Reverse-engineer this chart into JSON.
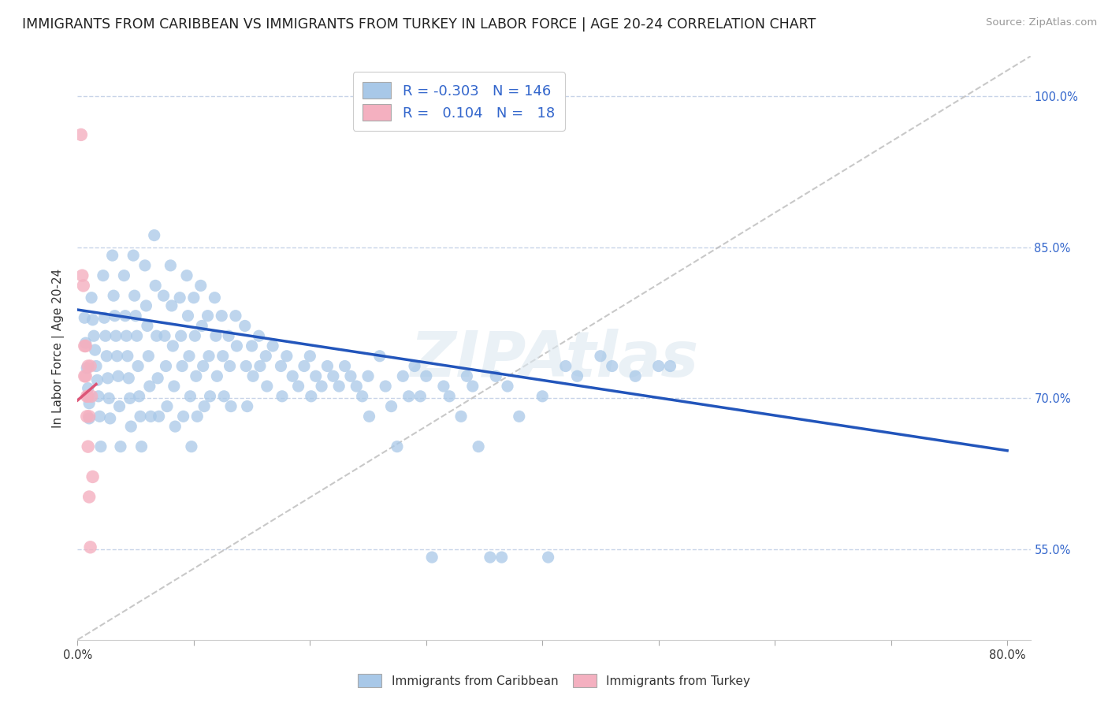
{
  "title": "IMMIGRANTS FROM CARIBBEAN VS IMMIGRANTS FROM TURKEY IN LABOR FORCE | AGE 20-24 CORRELATION CHART",
  "source": "Source: ZipAtlas.com",
  "ylabel": "In Labor Force | Age 20-24",
  "xlim": [
    0.0,
    0.82
  ],
  "ylim": [
    0.46,
    1.04
  ],
  "xticks": [
    0.0,
    0.1,
    0.2,
    0.3,
    0.4,
    0.5,
    0.6,
    0.7,
    0.8
  ],
  "yticks": [
    0.55,
    0.7,
    0.85,
    1.0
  ],
  "ytick_labels": [
    "55.0%",
    "70.0%",
    "85.0%",
    "100.0%"
  ],
  "blue_color": "#a8c8e8",
  "pink_color": "#f4b0c0",
  "blue_line_color": "#2255bb",
  "pink_line_color": "#dd5577",
  "ref_line_color": "#bbbbbb",
  "blue_scatter": [
    [
      0.006,
      0.78
    ],
    [
      0.007,
      0.755
    ],
    [
      0.008,
      0.73
    ],
    [
      0.009,
      0.71
    ],
    [
      0.01,
      0.695
    ],
    [
      0.01,
      0.68
    ],
    [
      0.012,
      0.8
    ],
    [
      0.013,
      0.778
    ],
    [
      0.014,
      0.762
    ],
    [
      0.015,
      0.748
    ],
    [
      0.016,
      0.732
    ],
    [
      0.017,
      0.718
    ],
    [
      0.018,
      0.702
    ],
    [
      0.019,
      0.682
    ],
    [
      0.02,
      0.652
    ],
    [
      0.022,
      0.822
    ],
    [
      0.023,
      0.78
    ],
    [
      0.024,
      0.762
    ],
    [
      0.025,
      0.742
    ],
    [
      0.026,
      0.72
    ],
    [
      0.027,
      0.7
    ],
    [
      0.028,
      0.68
    ],
    [
      0.03,
      0.842
    ],
    [
      0.031,
      0.802
    ],
    [
      0.032,
      0.782
    ],
    [
      0.033,
      0.762
    ],
    [
      0.034,
      0.742
    ],
    [
      0.035,
      0.722
    ],
    [
      0.036,
      0.692
    ],
    [
      0.037,
      0.652
    ],
    [
      0.04,
      0.822
    ],
    [
      0.041,
      0.782
    ],
    [
      0.042,
      0.762
    ],
    [
      0.043,
      0.742
    ],
    [
      0.044,
      0.72
    ],
    [
      0.045,
      0.7
    ],
    [
      0.046,
      0.672
    ],
    [
      0.048,
      0.842
    ],
    [
      0.049,
      0.802
    ],
    [
      0.05,
      0.782
    ],
    [
      0.051,
      0.762
    ],
    [
      0.052,
      0.732
    ],
    [
      0.053,
      0.702
    ],
    [
      0.054,
      0.682
    ],
    [
      0.055,
      0.652
    ],
    [
      0.058,
      0.832
    ],
    [
      0.059,
      0.792
    ],
    [
      0.06,
      0.772
    ],
    [
      0.061,
      0.742
    ],
    [
      0.062,
      0.712
    ],
    [
      0.063,
      0.682
    ],
    [
      0.066,
      0.862
    ],
    [
      0.067,
      0.812
    ],
    [
      0.068,
      0.762
    ],
    [
      0.069,
      0.72
    ],
    [
      0.07,
      0.682
    ],
    [
      0.074,
      0.802
    ],
    [
      0.075,
      0.762
    ],
    [
      0.076,
      0.732
    ],
    [
      0.077,
      0.692
    ],
    [
      0.08,
      0.832
    ],
    [
      0.081,
      0.792
    ],
    [
      0.082,
      0.752
    ],
    [
      0.083,
      0.712
    ],
    [
      0.084,
      0.672
    ],
    [
      0.088,
      0.8
    ],
    [
      0.089,
      0.762
    ],
    [
      0.09,
      0.732
    ],
    [
      0.091,
      0.682
    ],
    [
      0.094,
      0.822
    ],
    [
      0.095,
      0.782
    ],
    [
      0.096,
      0.742
    ],
    [
      0.097,
      0.702
    ],
    [
      0.098,
      0.652
    ],
    [
      0.1,
      0.8
    ],
    [
      0.101,
      0.762
    ],
    [
      0.102,
      0.722
    ],
    [
      0.103,
      0.682
    ],
    [
      0.106,
      0.812
    ],
    [
      0.107,
      0.772
    ],
    [
      0.108,
      0.732
    ],
    [
      0.109,
      0.692
    ],
    [
      0.112,
      0.782
    ],
    [
      0.113,
      0.742
    ],
    [
      0.114,
      0.702
    ],
    [
      0.118,
      0.8
    ],
    [
      0.119,
      0.762
    ],
    [
      0.12,
      0.722
    ],
    [
      0.124,
      0.782
    ],
    [
      0.125,
      0.742
    ],
    [
      0.126,
      0.702
    ],
    [
      0.13,
      0.762
    ],
    [
      0.131,
      0.732
    ],
    [
      0.132,
      0.692
    ],
    [
      0.136,
      0.782
    ],
    [
      0.137,
      0.752
    ],
    [
      0.144,
      0.772
    ],
    [
      0.145,
      0.732
    ],
    [
      0.146,
      0.692
    ],
    [
      0.15,
      0.752
    ],
    [
      0.151,
      0.722
    ],
    [
      0.156,
      0.762
    ],
    [
      0.157,
      0.732
    ],
    [
      0.162,
      0.742
    ],
    [
      0.163,
      0.712
    ],
    [
      0.168,
      0.752
    ],
    [
      0.175,
      0.732
    ],
    [
      0.176,
      0.702
    ],
    [
      0.18,
      0.742
    ],
    [
      0.185,
      0.722
    ],
    [
      0.19,
      0.712
    ],
    [
      0.195,
      0.732
    ],
    [
      0.2,
      0.742
    ],
    [
      0.201,
      0.702
    ],
    [
      0.205,
      0.722
    ],
    [
      0.21,
      0.712
    ],
    [
      0.215,
      0.732
    ],
    [
      0.22,
      0.722
    ],
    [
      0.225,
      0.712
    ],
    [
      0.23,
      0.732
    ],
    [
      0.235,
      0.722
    ],
    [
      0.24,
      0.712
    ],
    [
      0.245,
      0.702
    ],
    [
      0.25,
      0.722
    ],
    [
      0.251,
      0.682
    ],
    [
      0.26,
      0.742
    ],
    [
      0.265,
      0.712
    ],
    [
      0.27,
      0.692
    ],
    [
      0.275,
      0.652
    ],
    [
      0.28,
      0.722
    ],
    [
      0.285,
      0.702
    ],
    [
      0.29,
      0.732
    ],
    [
      0.295,
      0.702
    ],
    [
      0.3,
      0.722
    ],
    [
      0.305,
      0.542
    ],
    [
      0.315,
      0.712
    ],
    [
      0.32,
      0.702
    ],
    [
      0.33,
      0.682
    ],
    [
      0.335,
      0.722
    ],
    [
      0.34,
      0.712
    ],
    [
      0.345,
      0.652
    ],
    [
      0.355,
      0.542
    ],
    [
      0.36,
      0.722
    ],
    [
      0.365,
      0.542
    ],
    [
      0.37,
      0.712
    ],
    [
      0.38,
      0.682
    ],
    [
      0.4,
      0.702
    ],
    [
      0.405,
      0.542
    ],
    [
      0.42,
      0.732
    ],
    [
      0.43,
      0.722
    ],
    [
      0.45,
      0.742
    ],
    [
      0.46,
      0.732
    ],
    [
      0.48,
      0.722
    ],
    [
      0.5,
      0.732
    ],
    [
      0.51,
      0.732
    ]
  ],
  "pink_scatter": [
    [
      0.003,
      0.962
    ],
    [
      0.004,
      0.822
    ],
    [
      0.005,
      0.812
    ],
    [
      0.006,
      0.752
    ],
    [
      0.006,
      0.722
    ],
    [
      0.007,
      0.752
    ],
    [
      0.007,
      0.722
    ],
    [
      0.008,
      0.702
    ],
    [
      0.008,
      0.682
    ],
    [
      0.009,
      0.732
    ],
    [
      0.009,
      0.702
    ],
    [
      0.009,
      0.652
    ],
    [
      0.01,
      0.602
    ],
    [
      0.01,
      0.682
    ],
    [
      0.011,
      0.732
    ],
    [
      0.011,
      0.552
    ],
    [
      0.012,
      0.702
    ],
    [
      0.013,
      0.622
    ]
  ],
  "blue_trend_x": [
    0.0,
    0.8
  ],
  "blue_trend_y": [
    0.788,
    0.648
  ],
  "pink_trend_x": [
    0.0,
    0.016
  ],
  "pink_trend_y": [
    0.698,
    0.714
  ],
  "ref_line_x": [
    0.0,
    0.82
  ],
  "ref_line_y": [
    0.46,
    1.04
  ],
  "watermark": "ZIPAtlas",
  "background_color": "#ffffff",
  "grid_color": "#c8d4e8",
  "title_fontsize": 12.5,
  "axis_label_fontsize": 11,
  "tick_fontsize": 10.5,
  "legend_fontsize": 13
}
